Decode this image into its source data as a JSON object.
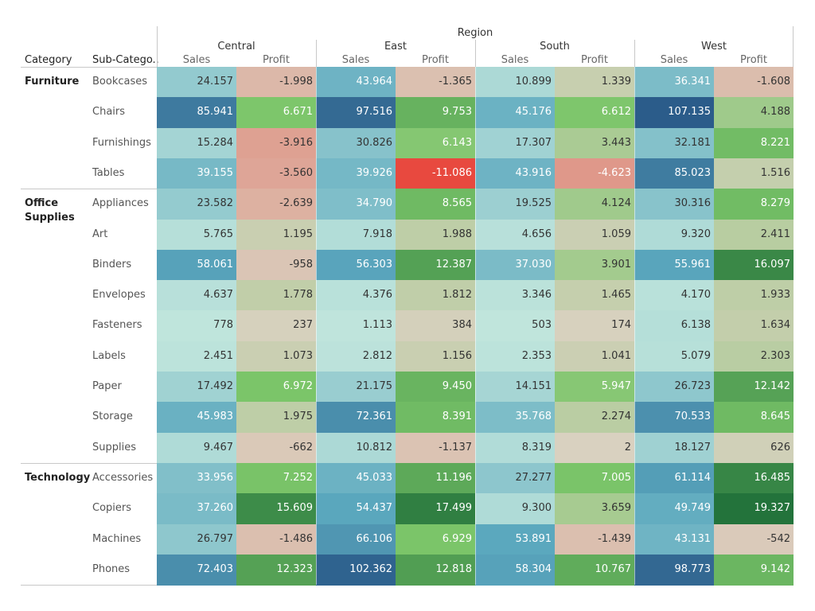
{
  "chart_data": {
    "type": "table",
    "title": "",
    "headers": {
      "category": "Category",
      "subcategory": "Sub-Catego..",
      "region": "Region",
      "sales": "Sales",
      "profit": "Profit"
    },
    "regions": [
      "Central",
      "East",
      "South",
      "West"
    ],
    "rows": [
      {
        "category": "Furniture",
        "sub": "Bookcases",
        "sales": [
          "24.157",
          "43.964",
          "10.899",
          "36.341"
        ],
        "profit": [
          "-1.998",
          "-1.365",
          "1.339",
          "-1.608"
        ]
      },
      {
        "category": "Furniture",
        "sub": "Chairs",
        "sales": [
          "85.941",
          "97.516",
          "45.176",
          "107.135"
        ],
        "profit": [
          "6.671",
          "9.753",
          "6.612",
          "4.188"
        ]
      },
      {
        "category": "Furniture",
        "sub": "Furnishings",
        "sales": [
          "15.284",
          "30.826",
          "17.307",
          "32.181"
        ],
        "profit": [
          "-3.916",
          "6.143",
          "3.443",
          "8.221"
        ]
      },
      {
        "category": "Furniture",
        "sub": "Tables",
        "sales": [
          "39.155",
          "39.926",
          "43.916",
          "85.023"
        ],
        "profit": [
          "-3.560",
          "-11.086",
          "-4.623",
          "1.516"
        ]
      },
      {
        "category": "Office Supplies",
        "sub": "Appliances",
        "sales": [
          "23.582",
          "34.790",
          "19.525",
          "30.316"
        ],
        "profit": [
          "-2.639",
          "8.565",
          "4.124",
          "8.279"
        ]
      },
      {
        "category": "Office Supplies",
        "sub": "Art",
        "sales": [
          "5.765",
          "7.918",
          "4.656",
          "9.320"
        ],
        "profit": [
          "1.195",
          "1.988",
          "1.059",
          "2.411"
        ]
      },
      {
        "category": "Office Supplies",
        "sub": "Binders",
        "sales": [
          "58.061",
          "56.303",
          "37.030",
          "55.961"
        ],
        "profit": [
          "-958",
          "12.387",
          "3.901",
          "16.097"
        ]
      },
      {
        "category": "Office Supplies",
        "sub": "Envelopes",
        "sales": [
          "4.637",
          "4.376",
          "3.346",
          "4.170"
        ],
        "profit": [
          "1.778",
          "1.812",
          "1.465",
          "1.933"
        ]
      },
      {
        "category": "Office Supplies",
        "sub": "Fasteners",
        "sales": [
          "778",
          "1.113",
          "503",
          "6.138"
        ],
        "profit": [
          "237",
          "384",
          "174",
          "1.634"
        ]
      },
      {
        "category": "Office Supplies",
        "sub": "Labels",
        "sales": [
          "2.451",
          "2.812",
          "2.353",
          "5.079"
        ],
        "profit": [
          "1.073",
          "1.156",
          "1.041",
          "2.303"
        ]
      },
      {
        "category": "Office Supplies",
        "sub": "Paper",
        "sales": [
          "17.492",
          "21.175",
          "14.151",
          "26.723"
        ],
        "profit": [
          "6.972",
          "9.450",
          "5.947",
          "12.142"
        ]
      },
      {
        "category": "Office Supplies",
        "sub": "Storage",
        "sales": [
          "45.983",
          "72.361",
          "35.768",
          "70.533"
        ],
        "profit": [
          "1.975",
          "8.391",
          "2.274",
          "8.645"
        ]
      },
      {
        "category": "Office Supplies",
        "sub": "Supplies",
        "sales": [
          "9.467",
          "10.812",
          "8.319",
          "18.127"
        ],
        "profit": [
          "-662",
          "-1.137",
          "2",
          "626"
        ]
      },
      {
        "category": "Technology",
        "sub": "Accessories",
        "sales": [
          "33.956",
          "45.033",
          "27.277",
          "61.114"
        ],
        "profit": [
          "7.252",
          "11.196",
          "7.005",
          "16.485"
        ]
      },
      {
        "category": "Technology",
        "sub": "Copiers",
        "sales": [
          "37.260",
          "54.437",
          "9.300",
          "49.749"
        ],
        "profit": [
          "15.609",
          "17.499",
          "3.659",
          "19.327"
        ]
      },
      {
        "category": "Technology",
        "sub": "Machines",
        "sales": [
          "26.797",
          "66.106",
          "53.891",
          "43.131"
        ],
        "profit": [
          "-1.486",
          "6.929",
          "-1.439",
          "-542"
        ]
      },
      {
        "category": "Technology",
        "sub": "Phones",
        "sales": [
          "72.403",
          "102.362",
          "58.304",
          "98.773"
        ],
        "profit": [
          "12.323",
          "12.818",
          "10.767",
          "9.142"
        ]
      }
    ],
    "color_scales": {
      "sales": {
        "low": "#c0e5dc",
        "mid": "#5ba8be",
        "high": "#2b5c8a"
      },
      "profit": {
        "negative": "#e8493f",
        "neutral": "#d9d1c0",
        "positive": "#23733b"
      }
    }
  }
}
